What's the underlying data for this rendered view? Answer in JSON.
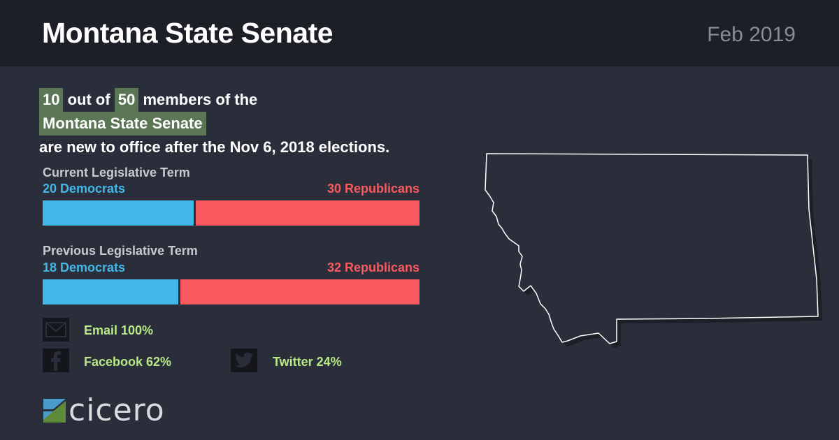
{
  "header": {
    "title": "Montana State Senate",
    "date": "Feb 2019"
  },
  "summary": {
    "new_members": "10",
    "out_of_text": "out of",
    "total_members": "50",
    "members_of_text": "members of the",
    "body_name": "Montana State Senate",
    "suffix_text": "are new to office after the Nov 6, 2018 elections."
  },
  "current_term": {
    "label": "Current Legislative Term",
    "democrats_label": "20 Democrats",
    "republicans_label": "30 Republicans",
    "democrats": 20,
    "republicans": 30
  },
  "previous_term": {
    "label": "Previous Legislative Term",
    "democrats_label": "18 Democrats",
    "republicans_label": "32 Republicans",
    "democrats": 18,
    "republicans": 32
  },
  "contact": {
    "email": "Email 100%",
    "facebook": "Facebook 62%",
    "twitter": "Twitter 24%",
    "icons": [
      "email-icon",
      "facebook-icon",
      "twitter-icon"
    ]
  },
  "brand": {
    "logo_text": "cicero"
  },
  "colors": {
    "background": "#2a2d3a",
    "header": "#1d1f27",
    "democrat": "#43b8e8",
    "republican": "#f85a5f",
    "highlight": "#5b7655",
    "stat_text": "#b8e986"
  }
}
